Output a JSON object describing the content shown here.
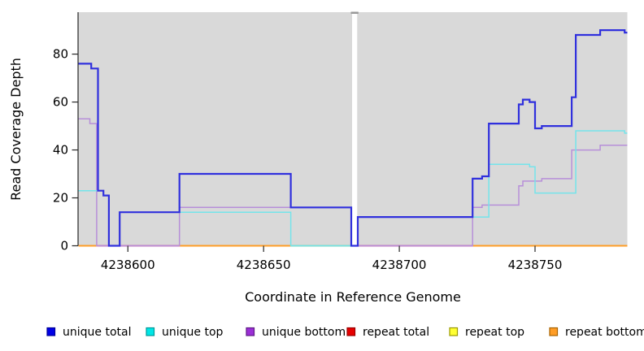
{
  "chart_data": {
    "type": "line",
    "subtype": "step-coverage",
    "title": "",
    "xlabel": "Coordinate in Reference Genome",
    "ylabel": "Read Coverage Depth",
    "xlim": [
      4238581.8,
      4238784
    ],
    "ylim": [
      0,
      97.5
    ],
    "x_ticks": [
      4238600,
      4238650,
      4238700,
      4238750
    ],
    "y_ticks": [
      0,
      20,
      40,
      60,
      80
    ],
    "grid": false,
    "panel_bg": "#d9d9d9",
    "gap": {
      "x_start": 4238682.6,
      "x_end": 4238684.5,
      "fill": "#ffffff",
      "cap_color": "#999999"
    },
    "series": [
      {
        "name": "unique total",
        "color": "#3030dd",
        "width": 2.2,
        "points": [
          [
            4238581.8,
            76
          ],
          [
            4238586.5,
            74
          ],
          [
            4238589,
            23
          ],
          [
            4238591,
            21
          ],
          [
            4238593,
            0
          ],
          [
            4238597,
            14
          ],
          [
            4238619,
            30
          ],
          [
            4238660,
            16
          ],
          [
            4238682.3,
            0
          ],
          [
            4238684.7,
            12
          ],
          [
            4238727,
            28
          ],
          [
            4238730.5,
            29
          ],
          [
            4238733,
            51
          ],
          [
            4238744,
            59
          ],
          [
            4238745.5,
            61
          ],
          [
            4238748,
            60
          ],
          [
            4238750,
            49
          ],
          [
            4238752.5,
            50
          ],
          [
            4238763.5,
            62
          ],
          [
            4238765,
            88
          ],
          [
            4238774,
            90
          ],
          [
            4238783,
            89
          ]
        ]
      },
      {
        "name": "unique top",
        "color": "#74e4ea",
        "width": 1.5,
        "points": [
          [
            4238581.8,
            23
          ],
          [
            4238591,
            21
          ],
          [
            4238593,
            0
          ],
          [
            4238597,
            14
          ],
          [
            4238660,
            0
          ],
          [
            4238684.7,
            12
          ],
          [
            4238733,
            34
          ],
          [
            4238748,
            33
          ],
          [
            4238750,
            22
          ],
          [
            4238765,
            48
          ],
          [
            4238783,
            47
          ]
        ]
      },
      {
        "name": "unique bottom",
        "color": "#b78fd9",
        "width": 1.5,
        "points": [
          [
            4238581.8,
            53
          ],
          [
            4238586,
            51
          ],
          [
            4238588.5,
            0
          ],
          [
            4238619,
            16
          ],
          [
            4238682.3,
            0
          ],
          [
            4238727,
            16
          ],
          [
            4238730.5,
            17
          ],
          [
            4238744,
            25
          ],
          [
            4238745.5,
            27
          ],
          [
            4238752.5,
            28
          ],
          [
            4238763.5,
            40
          ],
          [
            4238774,
            42
          ]
        ]
      },
      {
        "name": "repeat total",
        "color": "#dd2222",
        "width": 1.2,
        "points": [
          [
            4238581.8,
            0
          ]
        ]
      },
      {
        "name": "repeat top",
        "color": "#f2f23a",
        "width": 1.2,
        "points": [
          [
            4238581.8,
            0
          ]
        ]
      },
      {
        "name": "repeat bottom",
        "color": "#ff9d26",
        "width": 2,
        "points": [
          [
            4238581.8,
            0
          ]
        ]
      }
    ],
    "baseline_overlays": [
      {
        "x_start": 4238589,
        "x_end": 4238619,
        "color": "#d4699e"
      },
      {
        "x_start": 4238660,
        "x_end": 4238682.3,
        "color": "#90ca90"
      },
      {
        "x_start": 4238684.7,
        "x_end": 4238727,
        "color": "#d4699e"
      }
    ],
    "legend": {
      "position": "bottom",
      "items": [
        {
          "label": "unique total",
          "fill": "#0000e6",
          "border": "#00009a"
        },
        {
          "label": "unique top",
          "fill": "#00e6e6",
          "border": "#009a9a"
        },
        {
          "label": "unique bottom",
          "fill": "#9b2fd6",
          "border": "#5f1a86"
        },
        {
          "label": "repeat total",
          "fill": "#e60000",
          "border": "#9a0000"
        },
        {
          "label": "repeat top",
          "fill": "#ffff33",
          "border": "#9a9a00"
        },
        {
          "label": "repeat bottom",
          "fill": "#ff9d26",
          "border": "#a86300"
        }
      ]
    }
  }
}
